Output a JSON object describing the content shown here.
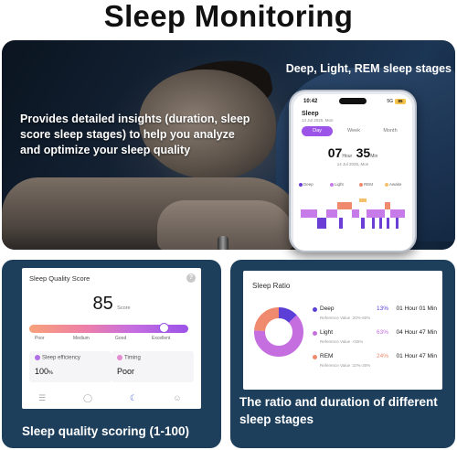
{
  "headline": "Sleep Monitoring",
  "hero": {
    "caption": "Deep, Light, REM sleep stages",
    "text": "Provides detailed insights (duration, sleep score sleep stages) to help you analyze and optimize your sleep quality"
  },
  "phone": {
    "time": "10:42",
    "signal": "5G",
    "battery": "85",
    "title": "Sleep",
    "date": "14 Jul 2025, Mon",
    "tabs": [
      {
        "label": "Day",
        "active": true
      },
      {
        "label": "Week",
        "active": false
      },
      {
        "label": "Month",
        "active": false
      }
    ],
    "duration": {
      "hours": "07",
      "hour_unit": "Hour",
      "minutes": "35",
      "minute_unit": "Min"
    },
    "subdate": "14 Jul 2025, Mon",
    "legend": [
      {
        "label": "Deep",
        "color": "#6b3fd6"
      },
      {
        "label": "Light",
        "color": "#c77be8"
      },
      {
        "label": "REM",
        "color": "#f08a6e"
      },
      {
        "label": "Awake",
        "color": "#f5c06a"
      }
    ]
  },
  "quality": {
    "title": "Sleep Quality Score",
    "help": "?",
    "score": "85",
    "score_unit": "Score",
    "score_fraction": 0.85,
    "scale": [
      "Poor",
      "Medium",
      "Good",
      "Excellent"
    ],
    "efficiency": {
      "label": "Sleep efficiency",
      "value": "100",
      "unit": "%",
      "icon_color": "#b06fe6"
    },
    "timing": {
      "label": "Timing",
      "value": "Poor",
      "icon_color": "#e58bd1"
    },
    "nav": [
      {
        "name": "nav-list-icon",
        "glyph": "☰",
        "active": false
      },
      {
        "name": "nav-ring-icon",
        "glyph": "◯",
        "active": false
      },
      {
        "name": "nav-moon-icon",
        "glyph": "☾",
        "active": true
      },
      {
        "name": "nav-profile-icon",
        "glyph": "☺",
        "active": false
      }
    ],
    "caption": "Sleep quality scoring (1-100)"
  },
  "ratio": {
    "title": "Sleep Ratio",
    "stages": [
      {
        "name": "Deep",
        "percent": "13%",
        "duration": "01 Hour 01 Min",
        "reference": "Reference Value :20%-60%",
        "color": "#5b3fd6",
        "value": 13
      },
      {
        "name": "Light",
        "percent": "63%",
        "duration": "04 Hour 47 Min",
        "reference": "Reference Value :<55%",
        "color": "#c56ee0",
        "value": 63
      },
      {
        "name": "REM",
        "percent": "24%",
        "duration": "01 Hour 47 Min",
        "reference": "Reference Value :10%-30%",
        "color": "#f08a6e",
        "value": 24
      }
    ],
    "caption": "The ratio and duration of different sleep stages"
  }
}
